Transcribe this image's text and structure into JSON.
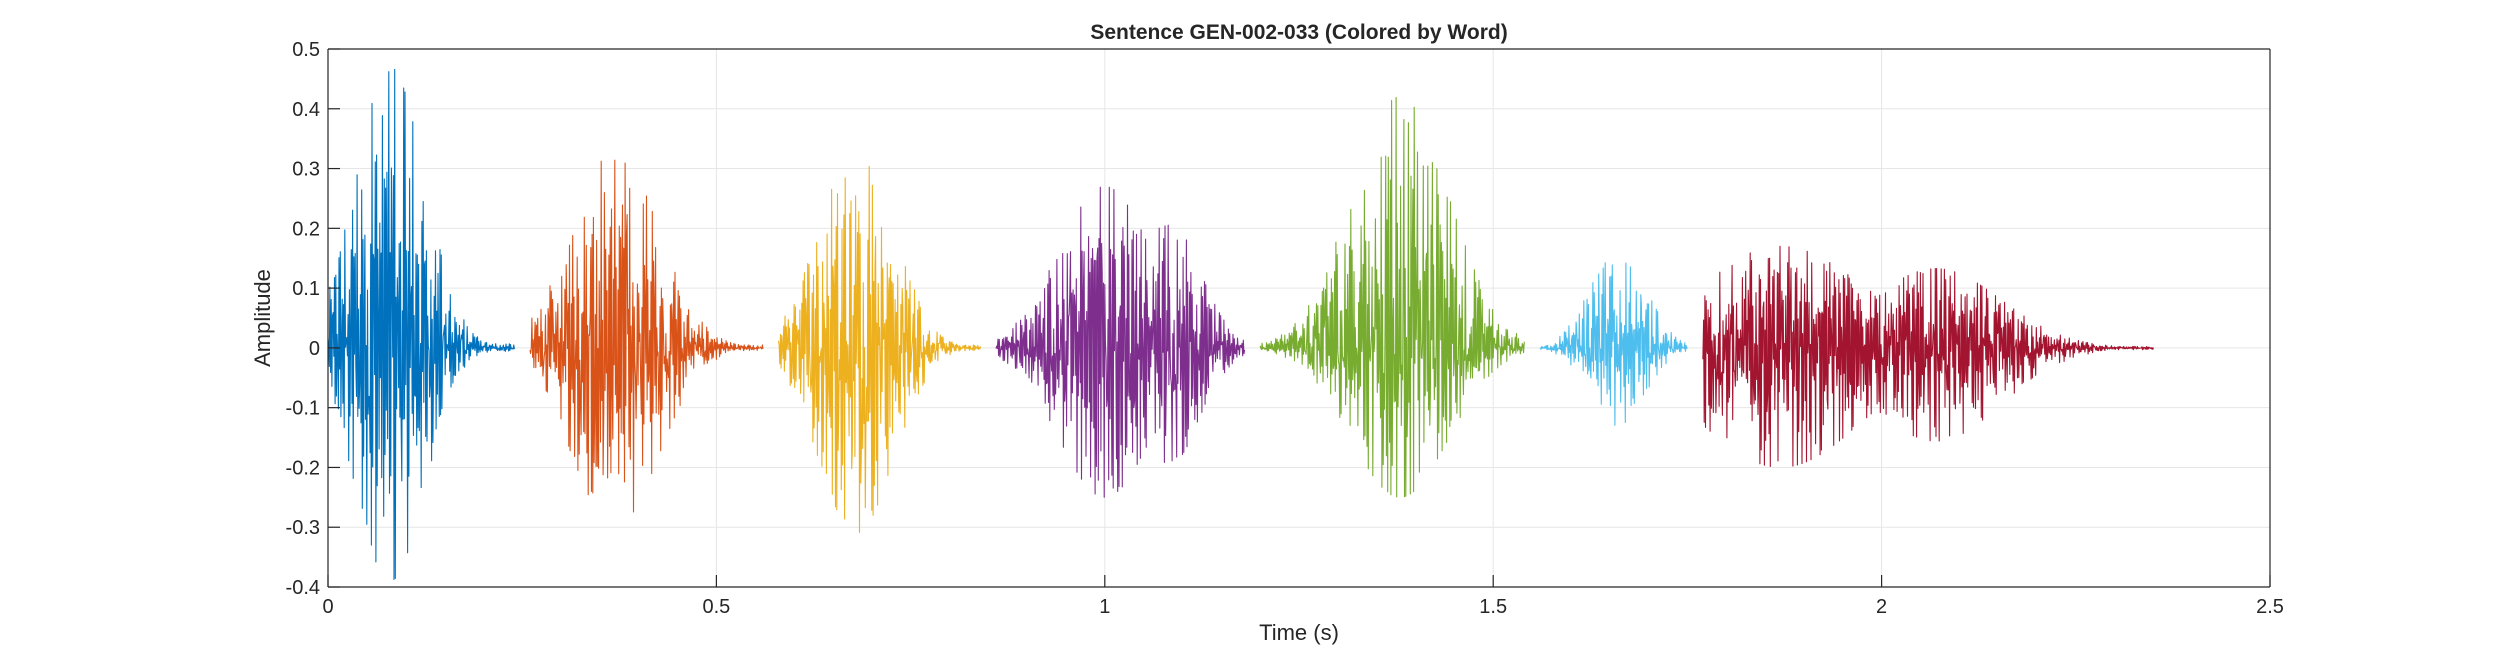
{
  "chart_data": {
    "type": "line",
    "title": "Sentence GEN-002-033 (Colored by Word)",
    "xlabel": "Time (s)",
    "ylabel": "Amplitude",
    "xlim": [
      0,
      2.5
    ],
    "ylim": [
      -0.4,
      0.5
    ],
    "xticks": [
      0,
      0.5,
      1,
      1.5,
      2,
      2.5
    ],
    "xtick_labels": [
      "0",
      "0.5",
      "1",
      "1.5",
      "2",
      "2.5"
    ],
    "yticks": [
      -0.4,
      -0.3,
      -0.2,
      -0.1,
      0,
      0.1,
      0.2,
      0.3,
      0.4,
      0.5
    ],
    "ytick_labels": [
      "-0.4",
      "-0.3",
      "-0.2",
      "-0.1",
      "0",
      "0.1",
      "0.2",
      "0.3",
      "0.4",
      "0.5"
    ],
    "grid": true,
    "box": true,
    "series": [
      {
        "color": "#0072BD",
        "x_start": 0.0,
        "x_end": 0.24,
        "peak_time": 0.08,
        "max_amp": 0.47,
        "min_amp": -0.39
      },
      {
        "color": "#D95319",
        "x_start": 0.26,
        "x_end": 0.56,
        "peak_time": 0.37,
        "max_amp": 0.33,
        "min_amp": -0.3
      },
      {
        "color": "#EDB120",
        "x_start": 0.58,
        "x_end": 0.84,
        "peak_time": 0.68,
        "max_amp": 0.33,
        "min_amp": -0.31
      },
      {
        "color": "#7E2F8E",
        "x_start": 0.86,
        "x_end": 1.18,
        "peak_time": 1.0,
        "max_amp": 0.27,
        "min_amp": -0.25
      },
      {
        "color": "#77AC30",
        "x_start": 1.2,
        "x_end": 1.54,
        "peak_time": 1.38,
        "max_amp": 0.42,
        "min_amp": -0.25
      },
      {
        "color": "#4DBEEE",
        "x_start": 1.56,
        "x_end": 1.75,
        "peak_time": 1.66,
        "max_amp": 0.18,
        "min_amp": -0.13
      },
      {
        "color": "#A2142F",
        "x_start": 1.77,
        "x_end": 2.35,
        "peak_time": 1.87,
        "max_amp": 0.17,
        "min_amp": -0.2
      }
    ]
  }
}
